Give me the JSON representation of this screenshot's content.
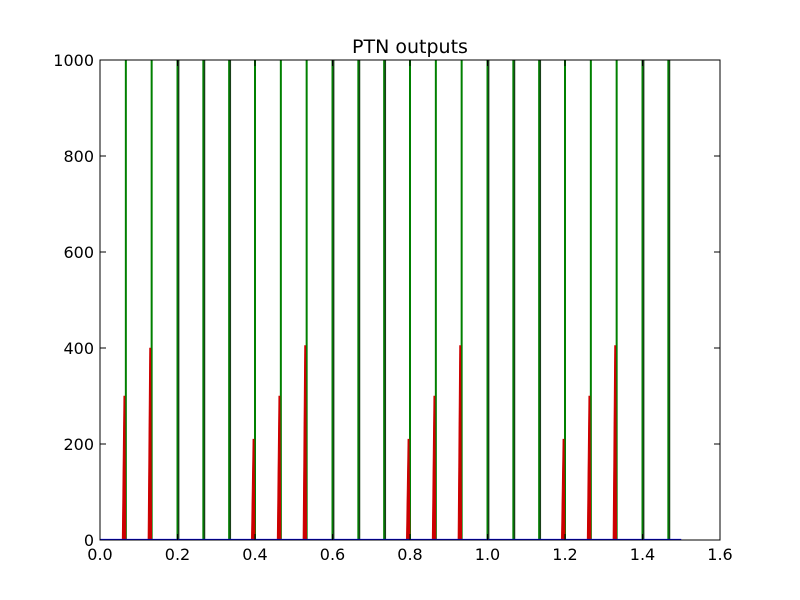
{
  "chart_data": {
    "type": "line",
    "title": "PTN outputs",
    "xlabel": "",
    "ylabel": "",
    "xlim": [
      0.0,
      1.6
    ],
    "ylim": [
      0,
      1000
    ],
    "xticks": [
      "0.0",
      "0.2",
      "0.4",
      "0.6",
      "0.8",
      "1.0",
      "1.2",
      "1.4",
      "1.6"
    ],
    "yticks": [
      "0",
      "200",
      "400",
      "600",
      "800",
      "1000"
    ],
    "grid": false,
    "legend": "none",
    "x_extent": [
      0.0,
      1.5
    ],
    "series": [
      {
        "color": "#008000",
        "style": "spikes",
        "peak": 1000,
        "x": [
          0.0667,
          0.1333,
          0.2,
          0.2667,
          0.3333,
          0.4,
          0.4667,
          0.5333,
          0.6,
          0.6667,
          0.7333,
          0.8,
          0.8667,
          0.9333,
          1.0,
          1.0667,
          1.1333,
          1.2,
          1.2667,
          1.3333,
          1.4,
          1.4667
        ]
      },
      {
        "color": "#1a3f1a",
        "style": "spikes",
        "peak": 1000,
        "x": [
          0.2,
          0.2667,
          0.3333,
          0.6,
          0.6667,
          0.7333,
          1.0,
          1.0667,
          1.1333,
          1.4,
          1.4667
        ]
      },
      {
        "color": "#cc0000",
        "style": "bumps",
        "x": [
          0.0667,
          0.1333,
          0.4,
          0.4667,
          0.5333,
          0.8,
          0.8667,
          0.9333,
          1.2,
          1.2667,
          1.3333
        ],
        "y": [
          300,
          400,
          210,
          300,
          405,
          210,
          300,
          405,
          210,
          300,
          405
        ]
      },
      {
        "color": "#0000ff",
        "style": "baseline",
        "x": [
          0.0,
          1.5
        ],
        "y": [
          0,
          0
        ]
      }
    ]
  }
}
